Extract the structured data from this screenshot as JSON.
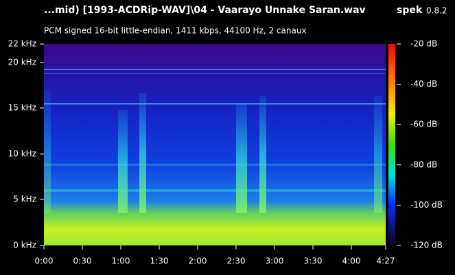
{
  "header": {
    "title": "...mid) [1993-ACDRip-WAV]\\04 - Vaarayo Unnake Saran.wav",
    "app": "spek",
    "version": "0.8.2"
  },
  "subtitle": "PCM signed 16-bit little-endian, 1411 kbps, 44100 Hz, 2 canaux",
  "frequency_axis": [
    "22 kHz",
    "20 kHz",
    "15 kHz",
    "10 kHz",
    "5 kHz",
    "0 kHz"
  ],
  "time_axis": [
    "0:00",
    "0:30",
    "1:00",
    "1:30",
    "2:00",
    "2:30",
    "3:00",
    "3:30",
    "4:00",
    "4:27"
  ],
  "db_scale": [
    "-20 dB",
    "-40 dB",
    "-60 dB",
    "-80 dB",
    "-100 dB",
    "-120 dB"
  ]
}
